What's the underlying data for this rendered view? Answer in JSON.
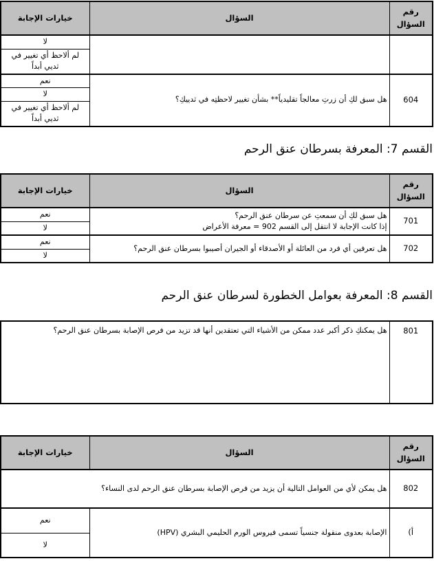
{
  "colors": {
    "header_bg": "#c0c0c0",
    "border": "#000000",
    "page_bg": "#ffffff"
  },
  "table_headers": {
    "answer_options": "خيارات الإجابة",
    "question": "السؤال",
    "question_number": "رقم السؤال"
  },
  "section6_table": {
    "continuation_row": {
      "number": "",
      "question": "",
      "options": [
        "لا",
        "لم ألاحظ أي تغيير في ثديي أبداً"
      ]
    },
    "q604": {
      "number": "604",
      "question": "هل سبق لكِ أن زرتِ معالجاً تقليدياً** بشأن تغيير لاحظتِه في ثدييكِ؟",
      "options": [
        "نعم",
        "لا",
        "لم ألاحظ أي تغيير في ثديي أبداً"
      ]
    }
  },
  "section7": {
    "title": "القسم 7: المعرفة بسرطان عنق الرحم",
    "q701": {
      "number": "701",
      "question_line1": "هل سبق لكِ أن سمعتِ عن سرطان عنق الرحم؟",
      "question_line2": "إذا كانت الإجابة لا انتقل إلى القسم 902 = معرفة الأعراض",
      "options": [
        "نعم",
        "لا"
      ]
    },
    "q702": {
      "number": "702",
      "question": "هل تعرفين أي فرد من العائلة أو الأصدقاء أو الجيران أصيبوا بسرطان عنق الرحم؟",
      "options": [
        "نعم",
        "لا"
      ]
    }
  },
  "section8": {
    "title": "القسم 8: المعرفة بعوامل الخطورة لسرطان عنق الرحم",
    "q801": {
      "number": "801",
      "question": "هل يمكنكِ ذكر أكبر عدد ممكن من الأشياء التي تعتقدين أنها قد تزيد من فرص الإصابة بسرطان عنق الرحم؟"
    },
    "q802": {
      "number": "802",
      "question": "هل يمكن لأي من العوامل التالية أن يزيد من فرص الإصابة بسرطان عنق الرحم لدى النساء؟"
    },
    "item_a": {
      "number": "أ)",
      "question": "الإصابة بعدوى منقولة جنسياً تسمى فيروس الورم الحليمي البشري (HPV)",
      "options": [
        "نعم",
        "لا"
      ]
    }
  }
}
